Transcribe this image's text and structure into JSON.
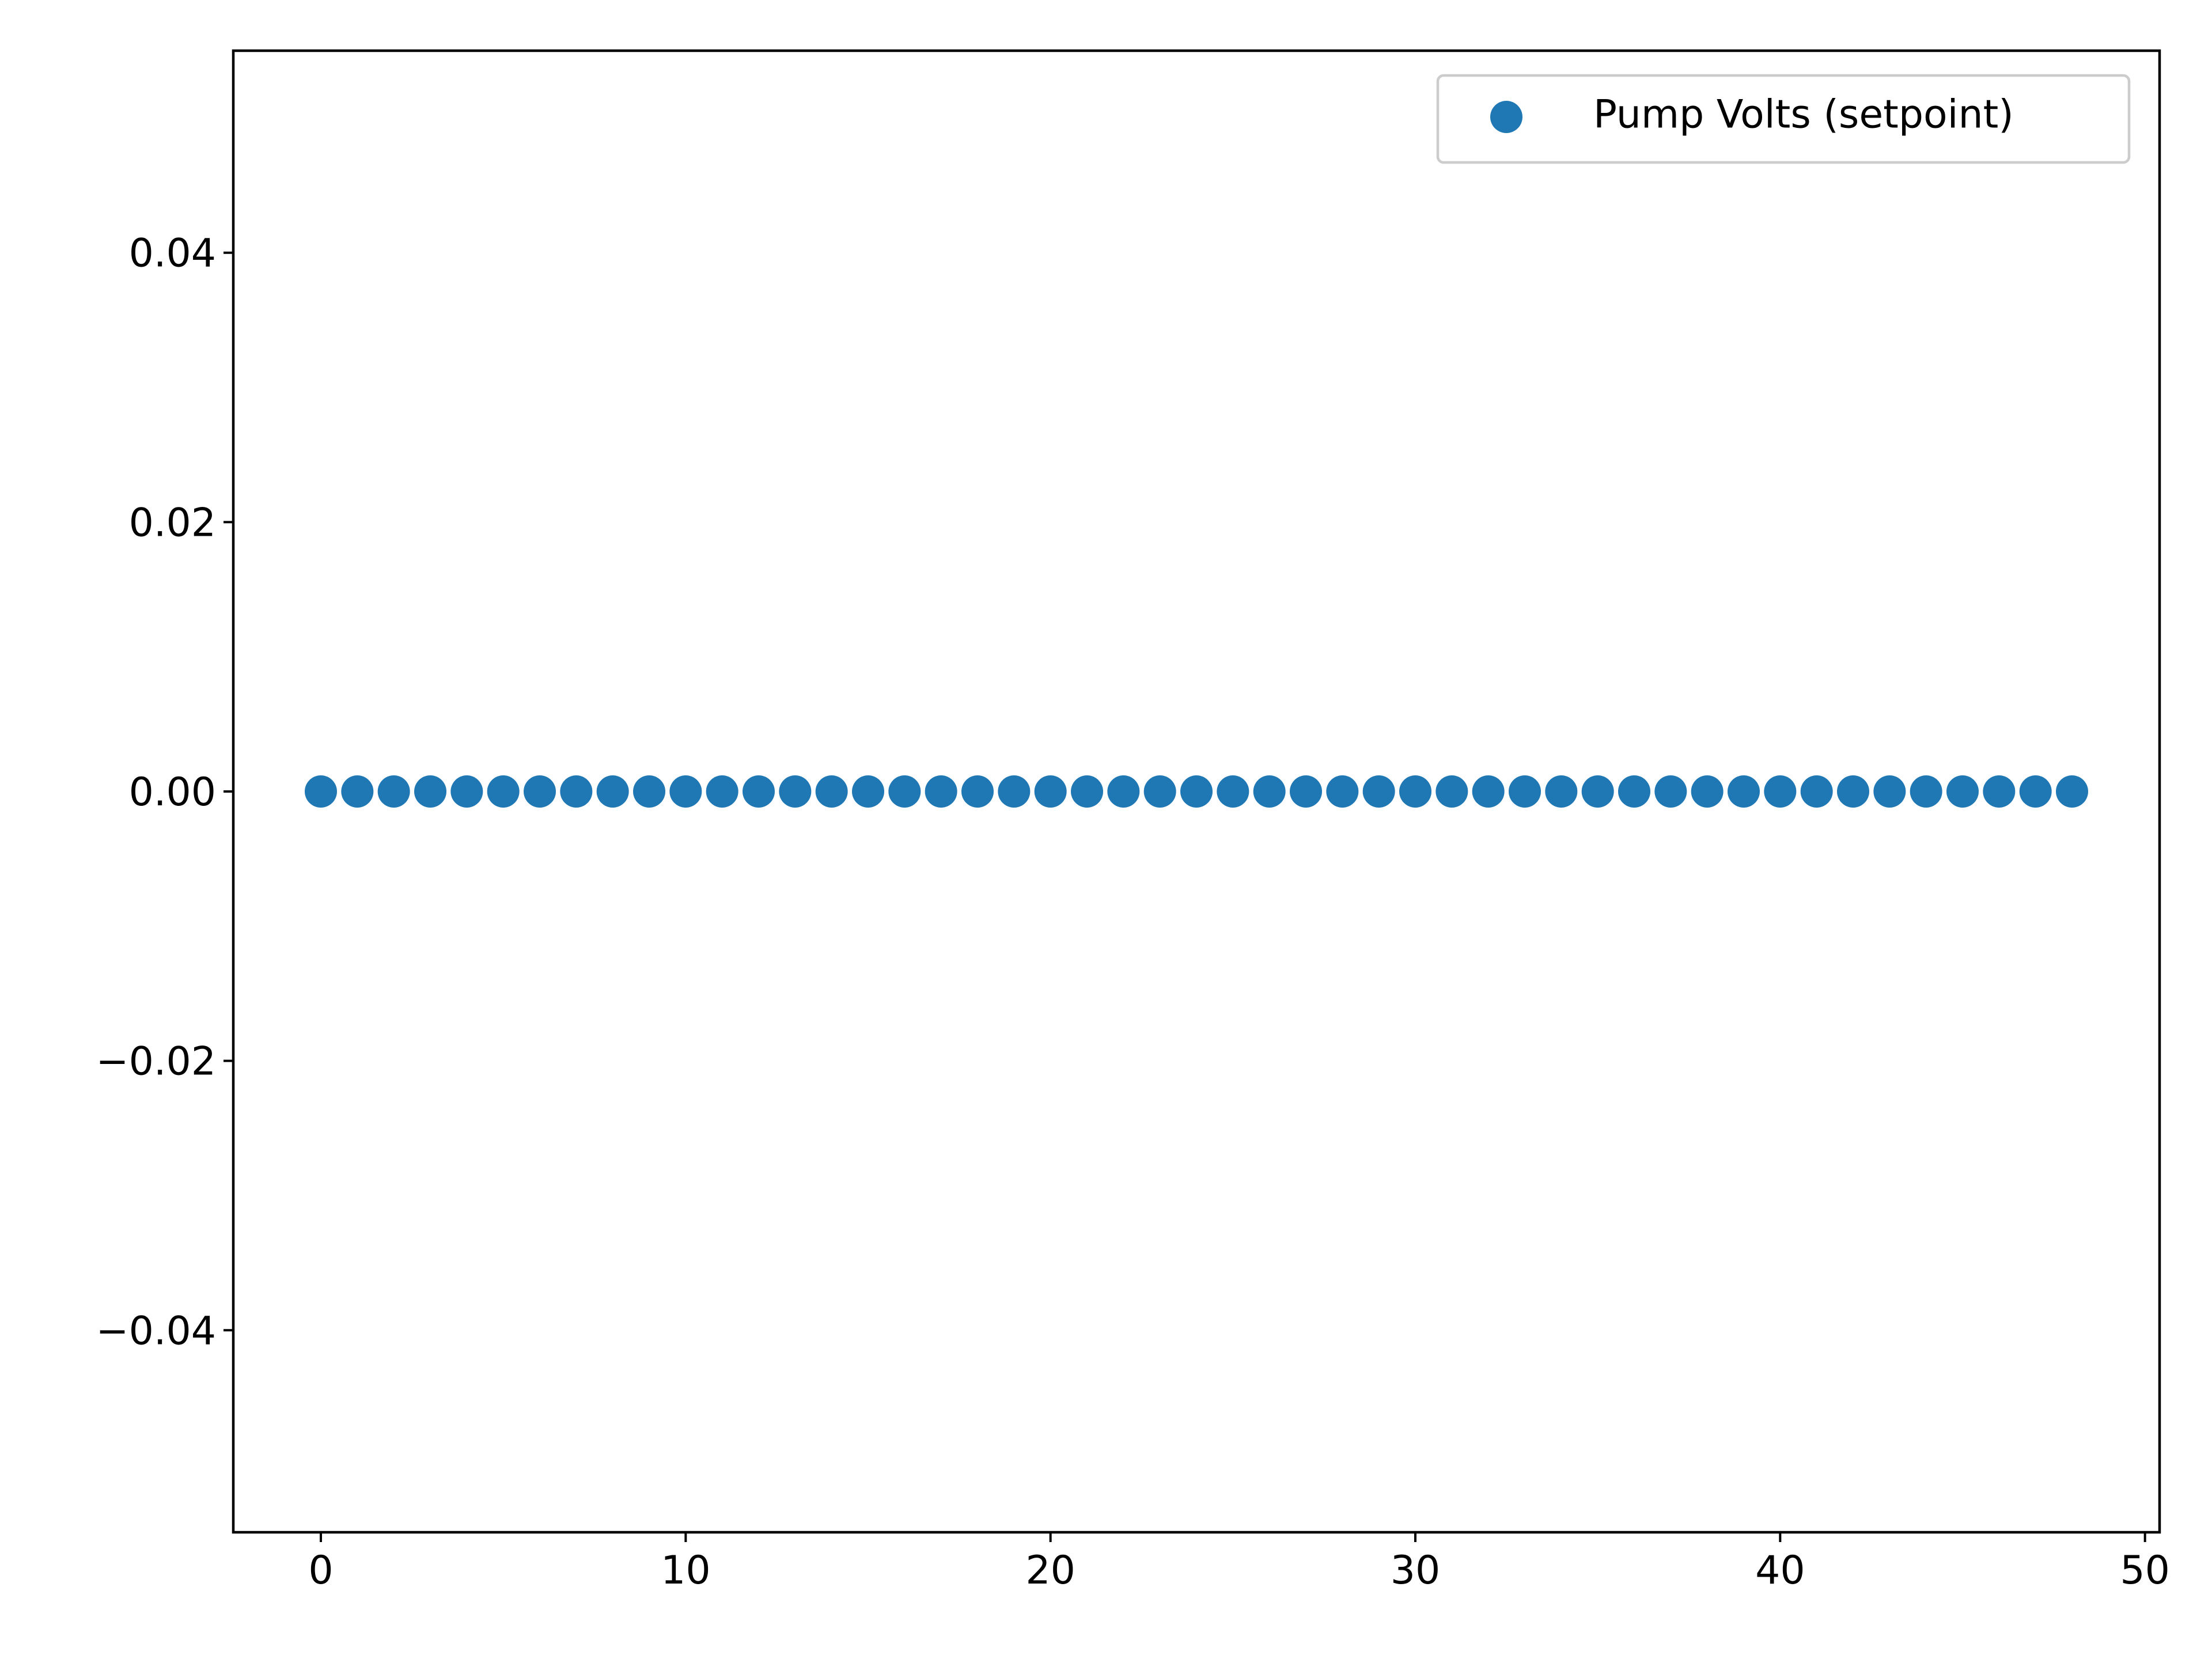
{
  "chart_data": {
    "type": "scatter",
    "title": "",
    "xlabel": "",
    "ylabel": "",
    "xlim": [
      -2.4,
      50.4
    ],
    "ylim": [
      -0.055,
      0.055
    ],
    "x_ticks": [
      0,
      10,
      20,
      30,
      40,
      50
    ],
    "y_ticks": [
      -0.04,
      -0.02,
      0.0,
      0.02,
      0.04
    ],
    "x_tick_labels": [
      "0",
      "10",
      "20",
      "30",
      "40",
      "50"
    ],
    "y_tick_labels": [
      "−0.04",
      "−0.02",
      "0.00",
      "0.02",
      "0.04"
    ],
    "grid": false,
    "legend_position": "top-right",
    "series": [
      {
        "name": "Pump Volts (setpoint)",
        "color": "#1f77b4",
        "marker": "circle",
        "x": [
          0,
          1,
          2,
          3,
          4,
          5,
          6,
          7,
          8,
          9,
          10,
          11,
          12,
          13,
          14,
          15,
          16,
          17,
          18,
          19,
          20,
          21,
          22,
          23,
          24,
          25,
          26,
          27,
          28,
          29,
          30,
          31,
          32,
          33,
          34,
          35,
          36,
          37,
          38,
          39,
          40,
          41,
          42,
          43,
          44,
          45,
          46,
          47,
          48
        ],
        "y": [
          0,
          0,
          0,
          0,
          0,
          0,
          0,
          0,
          0,
          0,
          0,
          0,
          0,
          0,
          0,
          0,
          0,
          0,
          0,
          0,
          0,
          0,
          0,
          0,
          0,
          0,
          0,
          0,
          0,
          0,
          0,
          0,
          0,
          0,
          0,
          0,
          0,
          0,
          0,
          0,
          0,
          0,
          0,
          0,
          0,
          0,
          0,
          0,
          0
        ]
      }
    ]
  }
}
